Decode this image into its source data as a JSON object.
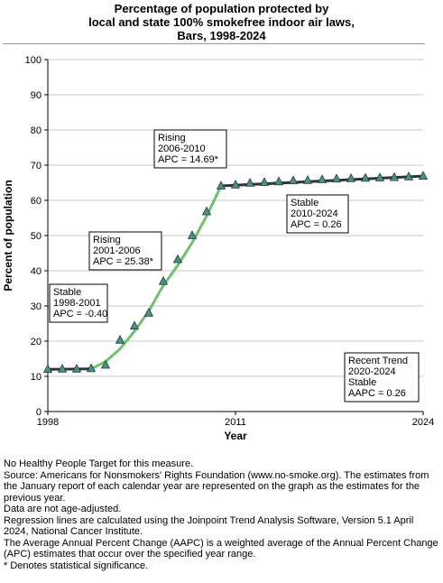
{
  "title_lines": [
    "Percentage of population protected by",
    "local and state 100% smokefree indoor air laws,",
    "Bars,  1998-2024"
  ],
  "chart_data": {
    "type": "line",
    "xlabel": "Year",
    "ylabel": "Percent of population",
    "xlim": [
      1998,
      2024
    ],
    "ylim": [
      0,
      100
    ],
    "x_ticks": [
      1998,
      2011,
      2024
    ],
    "y_ticks": [
      0,
      10,
      20,
      30,
      40,
      50,
      60,
      70,
      80,
      90,
      100
    ],
    "grid": "horizontal",
    "series": [
      {
        "role": "observed",
        "marker": "triangle",
        "color": "#4a8f8a",
        "x": [
          1998,
          1999,
          2000,
          2001,
          2002,
          2003,
          2004,
          2005,
          2006,
          2007,
          2008,
          2009,
          2010,
          2011,
          2012,
          2013,
          2014,
          2015,
          2016,
          2017,
          2018,
          2019,
          2020,
          2021,
          2022,
          2023,
          2024
        ],
        "y": [
          12.0,
          12.1,
          12.1,
          12.2,
          13.2,
          20.3,
          24.3,
          28.0,
          37.0,
          43.2,
          50.0,
          56.8,
          64.1,
          64.4,
          64.9,
          65.1,
          65.3,
          65.6,
          65.7,
          65.9,
          66.1,
          66.2,
          66.3,
          66.4,
          66.5,
          66.7,
          66.9
        ]
      }
    ],
    "trend_segments": [
      {
        "color": "#333333",
        "x": [
          1998,
          2001
        ],
        "y": [
          12.0,
          12.1
        ],
        "label": [
          "Stable",
          "1998-2001",
          "APC = -0.40"
        ]
      },
      {
        "color": "#6cc26c",
        "x": [
          2001,
          2002,
          2003,
          2004,
          2005,
          2006
        ],
        "y": [
          12.1,
          14.2,
          17.8,
          22.8,
          28.6,
          35.8
        ],
        "label": [
          "Rising",
          "2001-2006",
          "APC = 25.38*"
        ]
      },
      {
        "color": "#6cc26c",
        "x": [
          2006,
          2007,
          2008,
          2009,
          2010
        ],
        "y": [
          35.8,
          41.5,
          48.0,
          55.5,
          64.1
        ],
        "label": [
          "Rising",
          "2006-2010",
          "APC = 14.69*"
        ]
      },
      {
        "color": "#333333",
        "x": [
          2010,
          2024
        ],
        "y": [
          64.1,
          66.9
        ],
        "label": [
          "Stable",
          "2010-2024",
          "APC =  0.26"
        ]
      }
    ],
    "recent_trend_box": [
      "Recent Trend",
      "2020-2024",
      "Stable",
      "AAPC =  0.26"
    ]
  },
  "footnotes": [
    "No Healthy People Target for this measure.",
    "Source: Americans for Nonsmokers' Rights Foundation (www.no-smoke.org). The estimates from the January report of each calendar year are represented on the graph as the estimates for the previous year.",
    "Data are not age-adjusted.",
    "Regression lines are calculated using the Joinpoint Trend Analysis Software, Version 5.1 April 2024, National Cancer Institute.",
    "The Average Annual Percent Change (AAPC) is a weighted average of the Annual Percent Change (APC) estimates that occur over the specified year range.",
    "* Denotes statistical significance."
  ]
}
